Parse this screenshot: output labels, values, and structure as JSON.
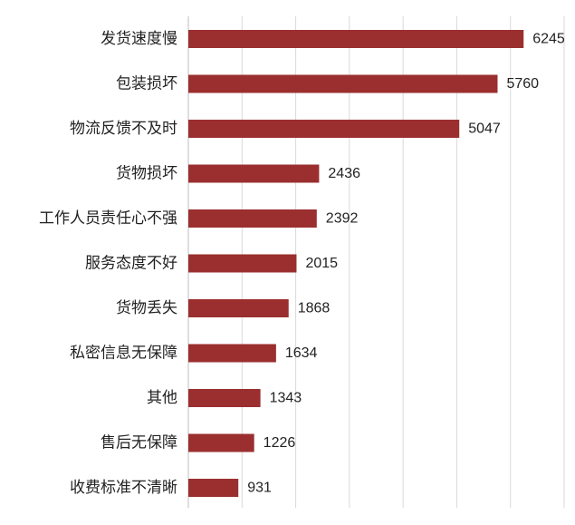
{
  "chart_data": {
    "type": "bar",
    "orientation": "horizontal",
    "categories": [
      "发货速度慢",
      "包装损坏",
      "物流反馈不及时",
      "货物损坏",
      "工作人员责任心不强",
      "服务态度不好",
      "货物丢失",
      "私密信息无保障",
      "其他",
      "售后无保障",
      "收费标准不清晰"
    ],
    "values": [
      6245,
      5760,
      5047,
      2436,
      2392,
      2015,
      1868,
      1634,
      1343,
      1226,
      931
    ],
    "xlim": [
      0,
      7000
    ],
    "grid": true,
    "title": "",
    "xlabel": "",
    "ylabel": "",
    "bar_color": "#9b2f2f",
    "grid_color": "#d9d9d9",
    "data_labels": true
  }
}
